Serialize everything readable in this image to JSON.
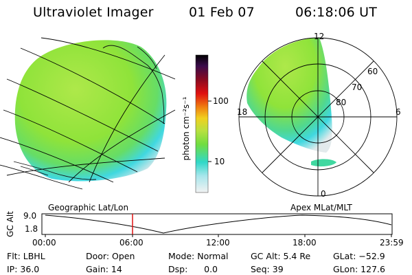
{
  "header": {
    "instrument": "Ultraviolet Imager",
    "date": "01 Feb 07",
    "time": "06:18:06 UT"
  },
  "colorbar": {
    "unit_label": "photon cm⁻²s⁻¹",
    "ticks": [
      "100",
      "10"
    ]
  },
  "polar": {
    "mlt_labels": [
      "12",
      "18",
      "6",
      "0"
    ],
    "lat_labels": [
      "60",
      "70",
      "80"
    ]
  },
  "panel_labels": {
    "left": "Geographic Lat/Lon",
    "right": "Apex MLat/MLT"
  },
  "altitude_plot": {
    "ylabel": "GC Alt",
    "yticks": [
      "9.0",
      "1.8"
    ],
    "xticks": [
      "00:00",
      "06:00",
      "12:00",
      "18:00",
      "23:59"
    ],
    "current_time_marker": "06:18"
  },
  "info": {
    "filter": "Flt: LBHL",
    "ip": "IP: 36.0",
    "door": "Door: Open",
    "gain": "Gain: 14",
    "mode": "Mode: Normal",
    "dsp": "Dsp:      0.0",
    "gc_alt": "GC Alt: 5.4 Re",
    "seq": "Seq: 39",
    "glat": "GLat: −52.9",
    "glon": "GLon: 127.6"
  },
  "colors": {
    "green_emission": "#8fe33a",
    "cyan_emission": "#40d8e0",
    "marker": "#dd1111"
  }
}
